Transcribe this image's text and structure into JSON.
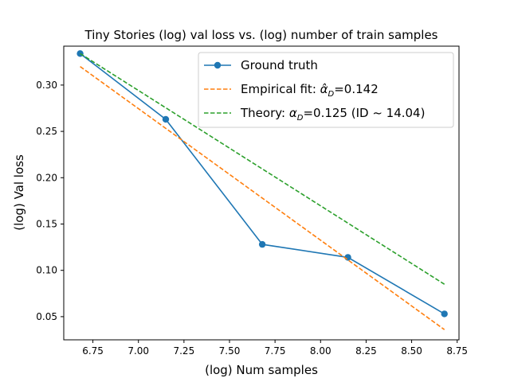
{
  "chart_data": {
    "type": "line",
    "title": "Tiny Stories (log) val loss vs. (log) number of train samples",
    "xlabel": "(log) Num samples",
    "ylabel": "(log) Val loss",
    "xlim": [
      6.59,
      8.76
    ],
    "ylim": [
      0.025,
      0.342
    ],
    "xticks": [
      6.75,
      7.0,
      7.25,
      7.5,
      7.75,
      8.0,
      8.25,
      8.5,
      8.75
    ],
    "xtick_labels": [
      "6.75",
      "7.00",
      "7.25",
      "7.50",
      "7.75",
      "8.00",
      "8.25",
      "8.50",
      "8.75"
    ],
    "yticks": [
      0.05,
      0.1,
      0.15,
      0.2,
      0.25,
      0.3
    ],
    "ytick_labels": [
      "0.05",
      "0.10",
      "0.15",
      "0.20",
      "0.25",
      "0.30"
    ],
    "grid": false,
    "legend_position": "top-right",
    "series": [
      {
        "name": "Ground truth",
        "legend_label": "Ground truth",
        "style": "solid-marker",
        "color": "#1f77b4",
        "x": [
          6.68,
          7.15,
          7.68,
          8.15,
          8.68
        ],
        "y": [
          0.334,
          0.263,
          0.128,
          0.114,
          0.053
        ]
      },
      {
        "name": "Empirical fit",
        "legend_label_prefix": "Empirical fit: ",
        "legend_label_suffix": "=0.142",
        "style": "dashed",
        "color": "#ff7f0e",
        "x": [
          6.68,
          8.68
        ],
        "y": [
          0.32,
          0.036
        ]
      },
      {
        "name": "Theory",
        "legend_label_prefix": "Theory: ",
        "legend_label_suffix": "=0.125 (ID ~ 14.04)",
        "style": "dashed",
        "color": "#2ca02c",
        "x": [
          6.68,
          8.68
        ],
        "y": [
          0.334,
          0.085
        ]
      }
    ]
  }
}
